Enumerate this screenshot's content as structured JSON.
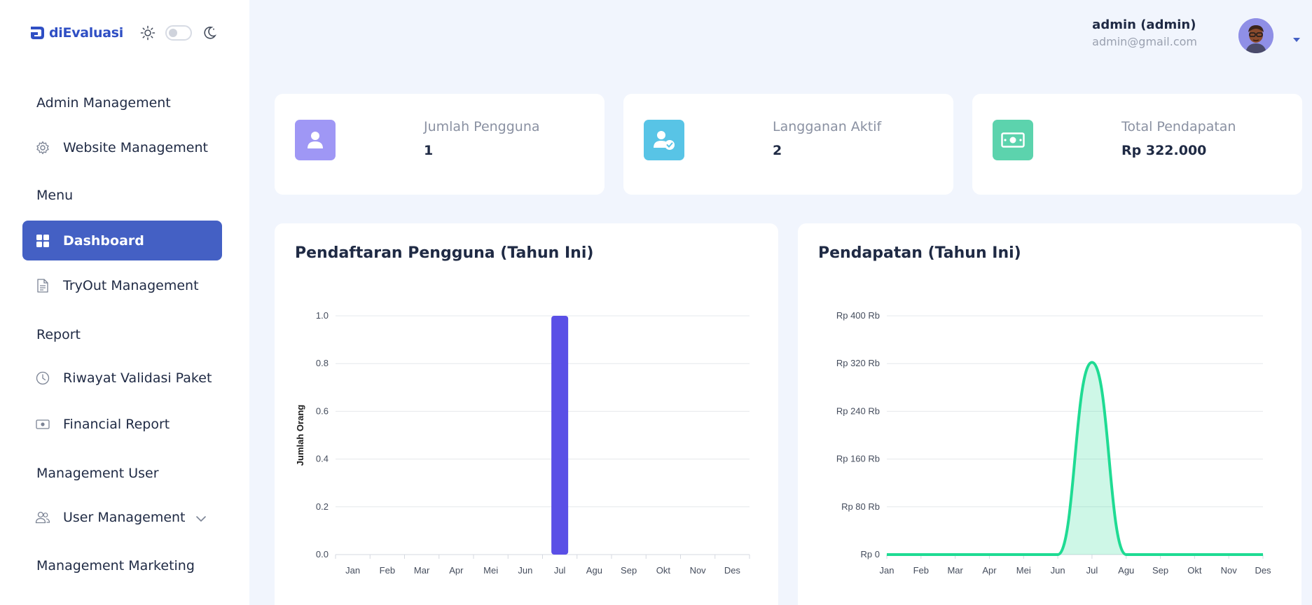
{
  "app": {
    "brand": "diEvaluasi"
  },
  "sidebar": {
    "sections": [
      {
        "label": "Admin Management"
      },
      {
        "label": "Menu"
      },
      {
        "label": "Report"
      },
      {
        "label": "Management User"
      },
      {
        "label": "Management Marketing"
      }
    ],
    "items": [
      {
        "label": "Website Management",
        "icon": "gear-icon"
      },
      {
        "label": "Dashboard",
        "icon": "grid-icon",
        "active": true
      },
      {
        "label": "TryOut Management",
        "icon": "document-icon"
      },
      {
        "label": "Riwayat Validasi Paket",
        "icon": "clock-icon"
      },
      {
        "label": "Financial Report",
        "icon": "money-icon"
      },
      {
        "label": "User Management",
        "icon": "users-icon"
      }
    ]
  },
  "header": {
    "user_name": "admin (admin)",
    "user_email": "admin@gmail.com"
  },
  "stats": [
    {
      "label": "Jumlah Pengguna",
      "value": "1",
      "color": "#9f97f5",
      "icon": "user-icon"
    },
    {
      "label": "Langganan Aktif",
      "value": "2",
      "color": "#58c4e6",
      "icon": "user-check-icon"
    },
    {
      "label": "Total Pendapatan",
      "value": "Rp 322.000",
      "color": "#5cd3ad",
      "icon": "cash-icon"
    }
  ],
  "colors": {
    "accent": "#4460c4",
    "bar": "#5a4fe6",
    "line": "#1fdb93"
  },
  "chart_data": [
    {
      "type": "bar",
      "title": "Pendaftaran Pengguna (Tahun Ini)",
      "ylabel": "Jumlah Orang",
      "categories": [
        "Jan",
        "Feb",
        "Mar",
        "Apr",
        "Mei",
        "Jun",
        "Jul",
        "Agu",
        "Sep",
        "Okt",
        "Nov",
        "Des"
      ],
      "values": [
        0,
        0,
        0,
        0,
        0,
        0,
        1,
        0,
        0,
        0,
        0,
        0
      ],
      "ylim": [
        0,
        1
      ],
      "yticks": [
        "0.0",
        "0.2",
        "0.4",
        "0.6",
        "0.8",
        "1.0"
      ],
      "grid": true
    },
    {
      "type": "area",
      "title": "Pendapatan (Tahun Ini)",
      "categories": [
        "Jan",
        "Feb",
        "Mar",
        "Apr",
        "Mei",
        "Jun",
        "Jul",
        "Agu",
        "Sep",
        "Okt",
        "Nov",
        "Des"
      ],
      "values": [
        0,
        0,
        0,
        0,
        0,
        0,
        322000,
        0,
        0,
        0,
        0,
        0
      ],
      "ylim": [
        0,
        400000
      ],
      "yticks": [
        "Rp 0",
        "Rp 80 Rb",
        "Rp 160 Rb",
        "Rp 240 Rb",
        "Rp 320 Rb",
        "Rp 400 Rb"
      ],
      "grid": true
    }
  ]
}
